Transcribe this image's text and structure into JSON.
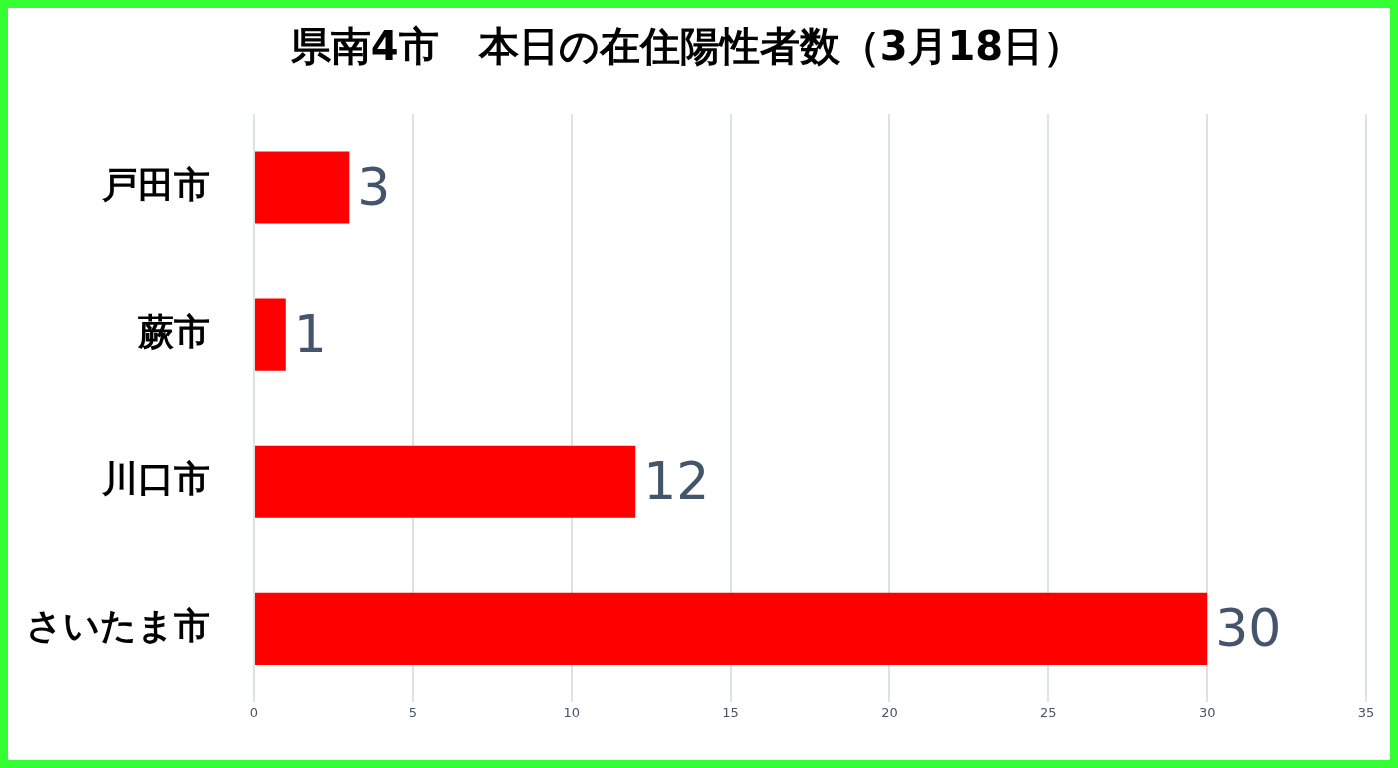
{
  "chart_data": {
    "type": "bar",
    "orientation": "horizontal",
    "title": "県南4市　本日の在住陽性者数（3月18日）",
    "categories": [
      "戸田市",
      "蕨市",
      "川口市",
      "さいたま市"
    ],
    "values": [
      3,
      1,
      12,
      30
    ],
    "color": "#ff0000",
    "xlim": [
      0,
      35
    ],
    "xticks": [
      0,
      5,
      10,
      15,
      20,
      25,
      30,
      35
    ],
    "grid": "x",
    "legend": false,
    "data_labels": true
  }
}
